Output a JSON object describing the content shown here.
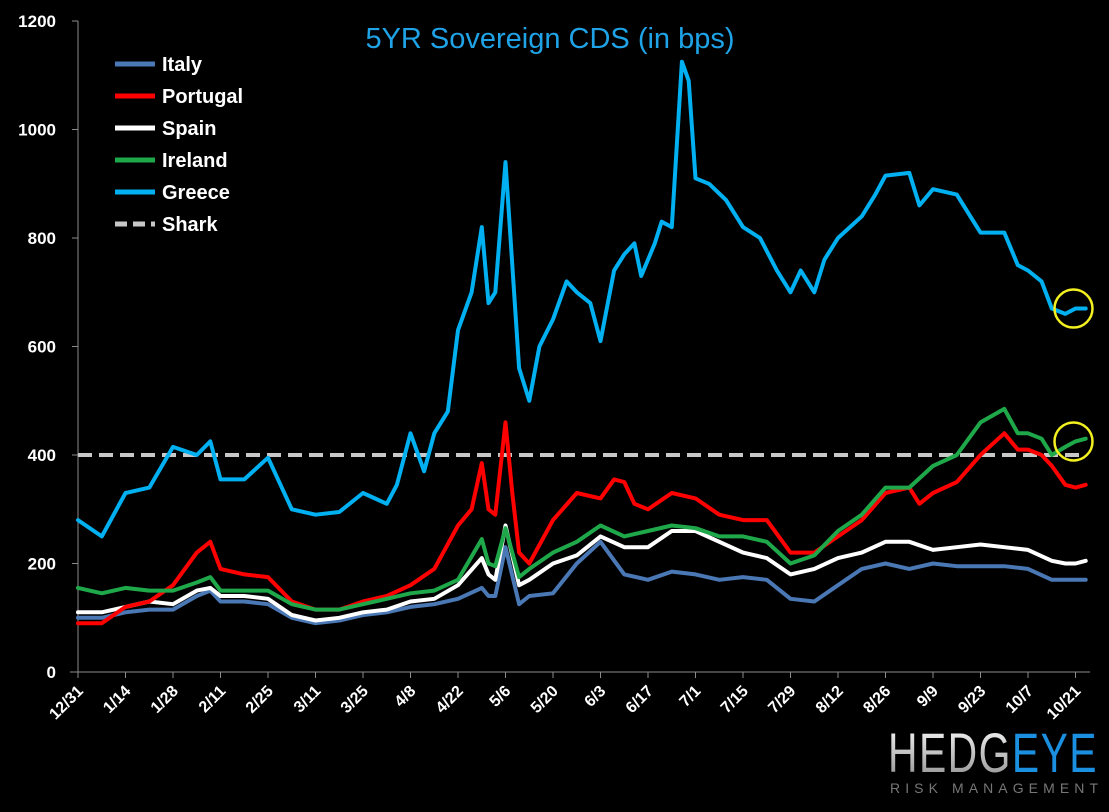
{
  "chart_data": {
    "type": "line",
    "title": "5YR Sovereign CDS (in bps)",
    "title_color": "#1fa3e6",
    "xlabel": "",
    "ylabel": "",
    "ylim": [
      0,
      1200
    ],
    "yticks": [
      "0",
      "200",
      "400",
      "600",
      "800",
      "1000",
      "1200"
    ],
    "xticks": [
      "12/31",
      "1/14",
      "1/28",
      "2/11",
      "2/25",
      "3/11",
      "3/25",
      "4/8",
      "4/22",
      "5/6",
      "5/20",
      "6/3",
      "6/17",
      "7/1",
      "7/15",
      "7/29",
      "8/12",
      "8/26",
      "9/9",
      "9/23",
      "10/7",
      "10/21"
    ],
    "grid": false,
    "legend_position": "top-left",
    "background": "#000000",
    "series": [
      {
        "name": "Italy",
        "color": "#4a78b5",
        "dashed": false,
        "points": [
          [
            "12/31",
            100
          ],
          [
            "1/7",
            100
          ],
          [
            "1/14",
            110
          ],
          [
            "1/21",
            115
          ],
          [
            "1/28",
            115
          ],
          [
            "2/4",
            140
          ],
          [
            "2/8",
            150
          ],
          [
            "2/11",
            130
          ],
          [
            "2/18",
            130
          ],
          [
            "2/25",
            125
          ],
          [
            "3/4",
            100
          ],
          [
            "3/11",
            90
          ],
          [
            "3/18",
            95
          ],
          [
            "3/25",
            105
          ],
          [
            "4/1",
            110
          ],
          [
            "4/8",
            120
          ],
          [
            "4/15",
            125
          ],
          [
            "4/22",
            135
          ],
          [
            "4/29",
            155
          ],
          [
            "5/1",
            140
          ],
          [
            "5/3",
            140
          ],
          [
            "5/6",
            230
          ],
          [
            "5/10",
            125
          ],
          [
            "5/13",
            140
          ],
          [
            "5/20",
            145
          ],
          [
            "5/27",
            200
          ],
          [
            "6/3",
            240
          ],
          [
            "6/10",
            180
          ],
          [
            "6/17",
            170
          ],
          [
            "6/24",
            185
          ],
          [
            "7/1",
            180
          ],
          [
            "7/8",
            170
          ],
          [
            "7/15",
            175
          ],
          [
            "7/22",
            170
          ],
          [
            "7/29",
            135
          ],
          [
            "8/5",
            130
          ],
          [
            "8/12",
            160
          ],
          [
            "8/19",
            190
          ],
          [
            "8/26",
            200
          ],
          [
            "9/2",
            190
          ],
          [
            "9/9",
            200
          ],
          [
            "9/16",
            195
          ],
          [
            "9/23",
            195
          ],
          [
            "9/30",
            195
          ],
          [
            "10/7",
            190
          ],
          [
            "10/14",
            170
          ],
          [
            "10/21",
            170
          ],
          [
            "10/24",
            170
          ]
        ]
      },
      {
        "name": "Portugal",
        "color": "#ff0000",
        "dashed": false,
        "points": [
          [
            "12/31",
            90
          ],
          [
            "1/7",
            90
          ],
          [
            "1/14",
            120
          ],
          [
            "1/21",
            130
          ],
          [
            "1/28",
            160
          ],
          [
            "2/4",
            220
          ],
          [
            "2/8",
            240
          ],
          [
            "2/11",
            190
          ],
          [
            "2/18",
            180
          ],
          [
            "2/25",
            175
          ],
          [
            "3/4",
            130
          ],
          [
            "3/11",
            115
          ],
          [
            "3/18",
            115
          ],
          [
            "3/25",
            130
          ],
          [
            "4/1",
            140
          ],
          [
            "4/8",
            160
          ],
          [
            "4/15",
            190
          ],
          [
            "4/22",
            270
          ],
          [
            "4/26",
            300
          ],
          [
            "4/29",
            385
          ],
          [
            "5/1",
            300
          ],
          [
            "5/3",
            290
          ],
          [
            "5/6",
            460
          ],
          [
            "5/8",
            330
          ],
          [
            "5/10",
            220
          ],
          [
            "5/13",
            200
          ],
          [
            "5/20",
            280
          ],
          [
            "5/27",
            330
          ],
          [
            "6/3",
            320
          ],
          [
            "6/7",
            355
          ],
          [
            "6/10",
            350
          ],
          [
            "6/13",
            310
          ],
          [
            "6/17",
            300
          ],
          [
            "6/24",
            330
          ],
          [
            "7/1",
            320
          ],
          [
            "7/8",
            290
          ],
          [
            "7/15",
            280
          ],
          [
            "7/22",
            280
          ],
          [
            "7/29",
            220
          ],
          [
            "8/5",
            220
          ],
          [
            "8/12",
            250
          ],
          [
            "8/19",
            280
          ],
          [
            "8/26",
            330
          ],
          [
            "9/2",
            340
          ],
          [
            "9/5",
            310
          ],
          [
            "9/9",
            330
          ],
          [
            "9/16",
            350
          ],
          [
            "9/23",
            400
          ],
          [
            "9/30",
            440
          ],
          [
            "10/4",
            410
          ],
          [
            "10/7",
            410
          ],
          [
            "10/11",
            400
          ],
          [
            "10/14",
            380
          ],
          [
            "10/18",
            345
          ],
          [
            "10/21",
            340
          ],
          [
            "10/24",
            345
          ]
        ]
      },
      {
        "name": "Spain",
        "color": "#ffffff",
        "dashed": false,
        "points": [
          [
            "12/31",
            110
          ],
          [
            "1/7",
            110
          ],
          [
            "1/14",
            120
          ],
          [
            "1/21",
            130
          ],
          [
            "1/28",
            125
          ],
          [
            "2/4",
            150
          ],
          [
            "2/8",
            155
          ],
          [
            "2/11",
            140
          ],
          [
            "2/18",
            140
          ],
          [
            "2/25",
            135
          ],
          [
            "3/4",
            105
          ],
          [
            "3/11",
            95
          ],
          [
            "3/18",
            100
          ],
          [
            "3/25",
            110
          ],
          [
            "4/1",
            115
          ],
          [
            "4/8",
            130
          ],
          [
            "4/15",
            135
          ],
          [
            "4/22",
            160
          ],
          [
            "4/29",
            210
          ],
          [
            "5/1",
            180
          ],
          [
            "5/3",
            170
          ],
          [
            "5/6",
            270
          ],
          [
            "5/10",
            160
          ],
          [
            "5/13",
            170
          ],
          [
            "5/20",
            200
          ],
          [
            "5/27",
            215
          ],
          [
            "6/3",
            250
          ],
          [
            "6/10",
            230
          ],
          [
            "6/17",
            230
          ],
          [
            "6/24",
            260
          ],
          [
            "7/1",
            260
          ],
          [
            "7/8",
            240
          ],
          [
            "7/15",
            220
          ],
          [
            "7/22",
            210
          ],
          [
            "7/29",
            180
          ],
          [
            "8/5",
            190
          ],
          [
            "8/12",
            210
          ],
          [
            "8/19",
            220
          ],
          [
            "8/26",
            240
          ],
          [
            "9/2",
            240
          ],
          [
            "9/9",
            225
          ],
          [
            "9/16",
            230
          ],
          [
            "9/23",
            235
          ],
          [
            "9/30",
            230
          ],
          [
            "10/7",
            225
          ],
          [
            "10/14",
            205
          ],
          [
            "10/18",
            200
          ],
          [
            "10/21",
            200
          ],
          [
            "10/24",
            205
          ]
        ]
      },
      {
        "name": "Ireland",
        "color": "#1fa84a",
        "dashed": false,
        "points": [
          [
            "12/31",
            155
          ],
          [
            "1/7",
            145
          ],
          [
            "1/14",
            155
          ],
          [
            "1/21",
            150
          ],
          [
            "1/28",
            150
          ],
          [
            "2/4",
            165
          ],
          [
            "2/8",
            175
          ],
          [
            "2/11",
            150
          ],
          [
            "2/18",
            150
          ],
          [
            "2/25",
            150
          ],
          [
            "3/4",
            125
          ],
          [
            "3/11",
            115
          ],
          [
            "3/18",
            115
          ],
          [
            "3/25",
            125
          ],
          [
            "4/1",
            135
          ],
          [
            "4/8",
            145
          ],
          [
            "4/15",
            150
          ],
          [
            "4/22",
            170
          ],
          [
            "4/29",
            245
          ],
          [
            "5/1",
            200
          ],
          [
            "5/3",
            195
          ],
          [
            "5/6",
            265
          ],
          [
            "5/10",
            175
          ],
          [
            "5/13",
            190
          ],
          [
            "5/20",
            220
          ],
          [
            "5/27",
            240
          ],
          [
            "6/3",
            270
          ],
          [
            "6/10",
            250
          ],
          [
            "6/17",
            260
          ],
          [
            "6/24",
            270
          ],
          [
            "7/1",
            265
          ],
          [
            "7/8",
            250
          ],
          [
            "7/15",
            250
          ],
          [
            "7/22",
            240
          ],
          [
            "7/29",
            200
          ],
          [
            "8/5",
            215
          ],
          [
            "8/12",
            260
          ],
          [
            "8/19",
            290
          ],
          [
            "8/26",
            340
          ],
          [
            "9/2",
            340
          ],
          [
            "9/9",
            380
          ],
          [
            "9/16",
            400
          ],
          [
            "9/23",
            460
          ],
          [
            "9/30",
            485
          ],
          [
            "10/4",
            440
          ],
          [
            "10/7",
            440
          ],
          [
            "10/11",
            430
          ],
          [
            "10/14",
            400
          ],
          [
            "10/18",
            415
          ],
          [
            "10/21",
            425
          ],
          [
            "10/24",
            430
          ]
        ]
      },
      {
        "name": "Greece",
        "color": "#00b0f0",
        "dashed": false,
        "points": [
          [
            "12/31",
            280
          ],
          [
            "1/7",
            250
          ],
          [
            "1/14",
            330
          ],
          [
            "1/21",
            340
          ],
          [
            "1/28",
            415
          ],
          [
            "2/4",
            400
          ],
          [
            "2/8",
            425
          ],
          [
            "2/11",
            355
          ],
          [
            "2/18",
            355
          ],
          [
            "2/25",
            395
          ],
          [
            "3/4",
            300
          ],
          [
            "3/11",
            290
          ],
          [
            "3/18",
            295
          ],
          [
            "3/25",
            330
          ],
          [
            "4/1",
            310
          ],
          [
            "4/4",
            345
          ],
          [
            "4/8",
            440
          ],
          [
            "4/12",
            370
          ],
          [
            "4/15",
            440
          ],
          [
            "4/19",
            480
          ],
          [
            "4/22",
            630
          ],
          [
            "4/26",
            700
          ],
          [
            "4/29",
            820
          ],
          [
            "5/1",
            680
          ],
          [
            "5/3",
            700
          ],
          [
            "5/6",
            940
          ],
          [
            "5/8",
            750
          ],
          [
            "5/10",
            560
          ],
          [
            "5/13",
            500
          ],
          [
            "5/16",
            600
          ],
          [
            "5/20",
            650
          ],
          [
            "5/24",
            720
          ],
          [
            "5/27",
            700
          ],
          [
            "5/31",
            680
          ],
          [
            "6/3",
            610
          ],
          [
            "6/7",
            740
          ],
          [
            "6/10",
            770
          ],
          [
            "6/13",
            790
          ],
          [
            "6/15",
            730
          ],
          [
            "6/19",
            790
          ],
          [
            "6/21",
            830
          ],
          [
            "6/24",
            820
          ],
          [
            "6/27",
            1125
          ],
          [
            "6/29",
            1090
          ],
          [
            "7/1",
            910
          ],
          [
            "7/5",
            900
          ],
          [
            "7/10",
            870
          ],
          [
            "7/15",
            820
          ],
          [
            "7/20",
            800
          ],
          [
            "7/25",
            740
          ],
          [
            "7/29",
            700
          ],
          [
            "8/1",
            740
          ],
          [
            "8/5",
            700
          ],
          [
            "8/8",
            760
          ],
          [
            "8/12",
            800
          ],
          [
            "8/19",
            840
          ],
          [
            "8/23",
            880
          ],
          [
            "8/26",
            915
          ],
          [
            "9/2",
            920
          ],
          [
            "9/5",
            860
          ],
          [
            "9/9",
            890
          ],
          [
            "9/16",
            880
          ],
          [
            "9/20",
            840
          ],
          [
            "9/23",
            810
          ],
          [
            "9/30",
            810
          ],
          [
            "10/4",
            750
          ],
          [
            "10/7",
            740
          ],
          [
            "10/11",
            720
          ],
          [
            "10/14",
            670
          ],
          [
            "10/18",
            660
          ],
          [
            "10/21",
            670
          ],
          [
            "10/24",
            670
          ]
        ]
      },
      {
        "name": "Shark",
        "color": "#c8c8c8",
        "dashed": true,
        "points": [
          [
            "12/31",
            400
          ],
          [
            "10/24",
            400
          ]
        ]
      }
    ],
    "annotations": [
      {
        "type": "circle",
        "series": "Greece",
        "date": "10/21",
        "value": 670,
        "color": "#f2f020"
      },
      {
        "type": "circle",
        "series": "Ireland",
        "date": "10/21",
        "value": 425,
        "color": "#f2f020"
      }
    ]
  },
  "logo": {
    "text_main": "HEDG",
    "text_accent": "EYE",
    "subtitle": "RISK MANAGEMENT"
  }
}
